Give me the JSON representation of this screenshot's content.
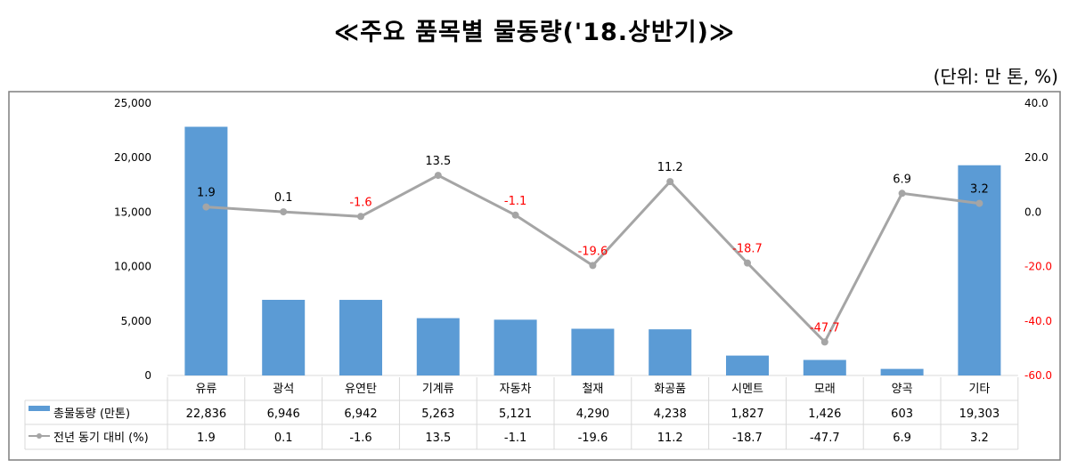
{
  "title": "≪주요 품목별 물동량('18.상반기)≫",
  "unit": "(단위: 만 톤, %)",
  "chart_data": {
    "type": "bar+line",
    "categories": [
      "유류",
      "광석",
      "유연탄",
      "기계류",
      "자동차",
      "철재",
      "화공품",
      "시멘트",
      "모래",
      "양곡",
      "기타"
    ],
    "series": [
      {
        "name": "총물동량 (만톤)",
        "type": "bar",
        "axis": "left",
        "values": [
          22836,
          6946,
          6942,
          5263,
          5121,
          4290,
          4238,
          1827,
          1426,
          603,
          19303
        ],
        "display": [
          "22,836",
          "6,946",
          "6,942",
          "5,263",
          "5,121",
          "4,290",
          "4,238",
          "1,827",
          "1,426",
          "603",
          "19,303"
        ],
        "color": "#5b9bd5"
      },
      {
        "name": "전년 동기 대비 (%)",
        "type": "line",
        "axis": "right",
        "values": [
          1.9,
          0.1,
          -1.6,
          13.5,
          -1.1,
          -19.6,
          11.2,
          -18.7,
          -47.7,
          6.9,
          3.2
        ],
        "display": [
          "1.9",
          "0.1",
          "-1.6",
          "13.5",
          "-1.1",
          "-19.6",
          "11.2",
          "-18.7",
          "-47.7",
          "6.9",
          "3.2"
        ],
        "color": "#a5a5a5",
        "negative_label_color": "#ff0000"
      }
    ],
    "left_axis": {
      "ylim": [
        0,
        25000
      ],
      "ticks": [
        "0",
        "5,000",
        "10,000",
        "15,000",
        "20,000",
        "25,000"
      ]
    },
    "right_axis": {
      "ylim": [
        -60,
        40
      ],
      "ticks": [
        "-60.0",
        "-40.0",
        "-20.0",
        "0.0",
        "20.0",
        "40.0"
      ]
    },
    "grid": false,
    "legend": "data-table"
  }
}
